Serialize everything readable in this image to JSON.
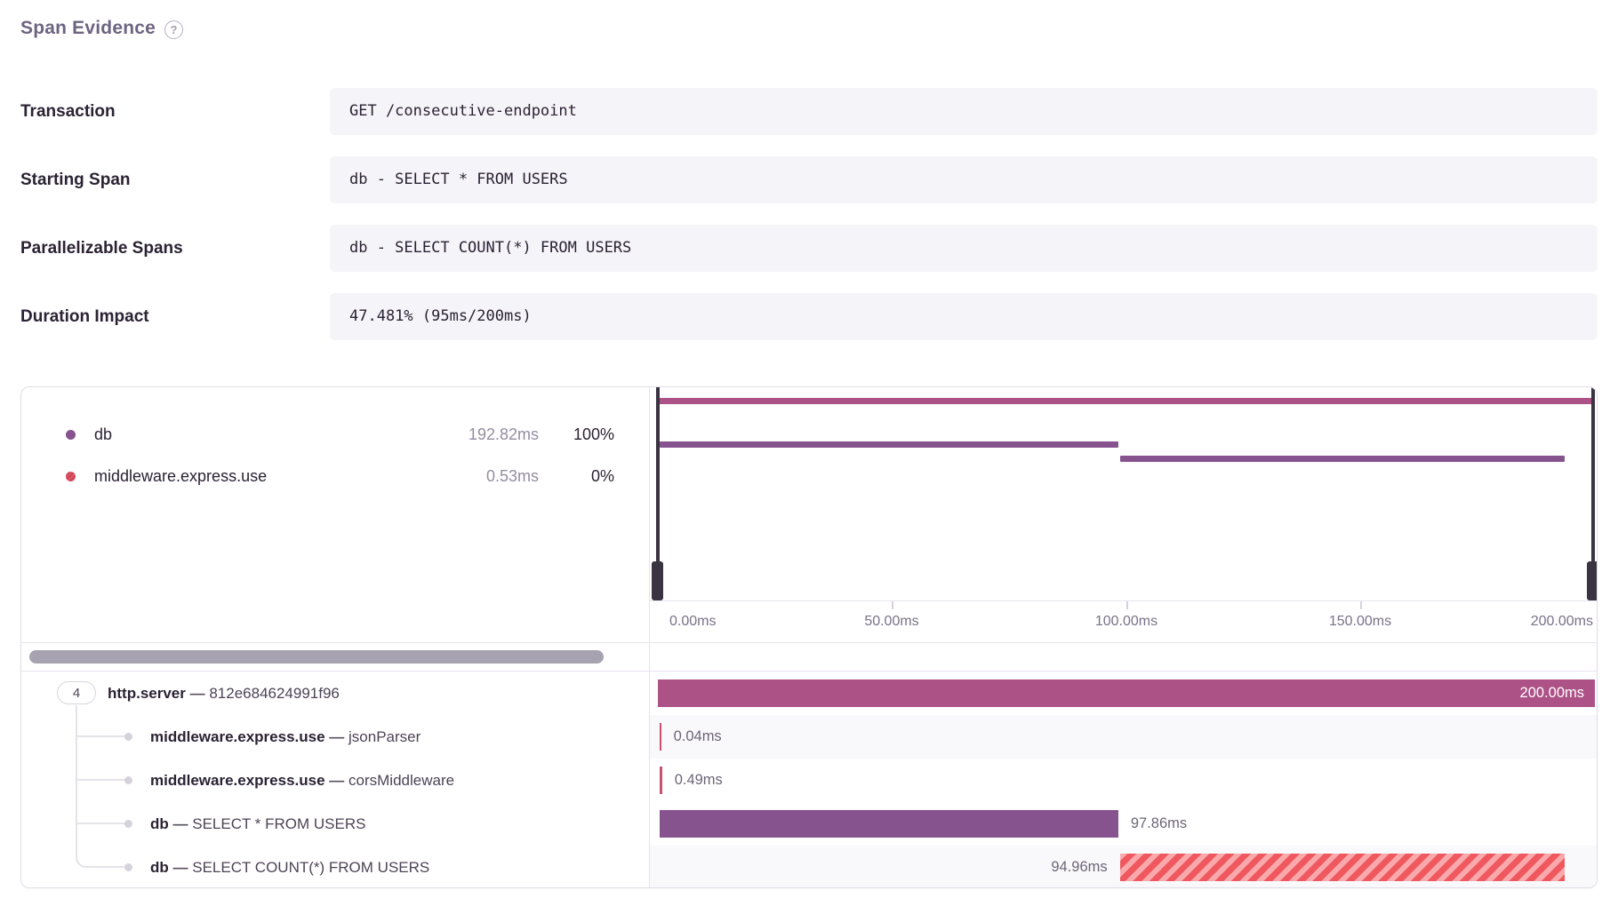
{
  "header": {
    "title": "Span Evidence",
    "help_icon": "?"
  },
  "fields": [
    {
      "label": "Transaction",
      "value": "GET /consecutive-endpoint"
    },
    {
      "label": "Starting Span",
      "value": "db - SELECT * FROM USERS"
    },
    {
      "label": "Parallelizable Spans",
      "value": "db - SELECT COUNT(*) FROM USERS"
    },
    {
      "label": "Duration Impact",
      "value": "47.481% (95ms/200ms)"
    }
  ],
  "legend": [
    {
      "name": "db",
      "duration": "192.82ms",
      "percent": "100%",
      "color": "#86538f",
      "swatch": "solid-purple"
    },
    {
      "name": "middleware.express.use",
      "duration": "0.53ms",
      "percent": "0%",
      "color": "#e25563",
      "swatch": "striped-red"
    }
  ],
  "tree": {
    "root_count": "4"
  },
  "colors": {
    "http_bar": "#ad5287",
    "db_bar": "#86538f",
    "middleware_bar": "#c9506e",
    "striped_base": "#f9a9ac",
    "striped_stripe": "#ef585e",
    "handle": "#3a3342",
    "scroll_thumb": "#a7a2af"
  },
  "chart_data": {
    "type": "bar",
    "subtype": "span-waterfall",
    "unit": "ms",
    "x_range_ms": [
      0,
      200
    ],
    "x_ticks": [
      "0.00ms",
      "50.00ms",
      "100.00ms",
      "150.00ms",
      "200.00ms"
    ],
    "grid": false,
    "legend_position": "top-left",
    "spans": [
      {
        "op": "http.server",
        "sep": "—",
        "desc": "812e684624991f96",
        "start_ms": 0,
        "duration_ms": 200.0,
        "duration_label": "200.00ms",
        "style": "solid-magenta",
        "label_pos": "inside"
      },
      {
        "op": "middleware.express.use",
        "sep": "—",
        "desc": "jsonParser",
        "start_ms": 0.3,
        "duration_ms": 0.04,
        "duration_label": "0.04ms",
        "style": "solid-red",
        "label_pos": "right"
      },
      {
        "op": "middleware.express.use",
        "sep": "—",
        "desc": "corsMiddleware",
        "start_ms": 0.4,
        "duration_ms": 0.49,
        "duration_label": "0.49ms",
        "style": "solid-red",
        "label_pos": "right"
      },
      {
        "op": "db",
        "sep": "—",
        "desc": "SELECT * FROM USERS",
        "start_ms": 0.4,
        "duration_ms": 97.86,
        "duration_label": "97.86ms",
        "style": "solid-purple",
        "label_pos": "right"
      },
      {
        "op": "db",
        "sep": "—",
        "desc": "SELECT COUNT(*) FROM USERS",
        "start_ms": 98.6,
        "duration_ms": 94.96,
        "duration_label": "94.96ms",
        "style": "striped-red",
        "label_pos": "left"
      }
    ]
  }
}
